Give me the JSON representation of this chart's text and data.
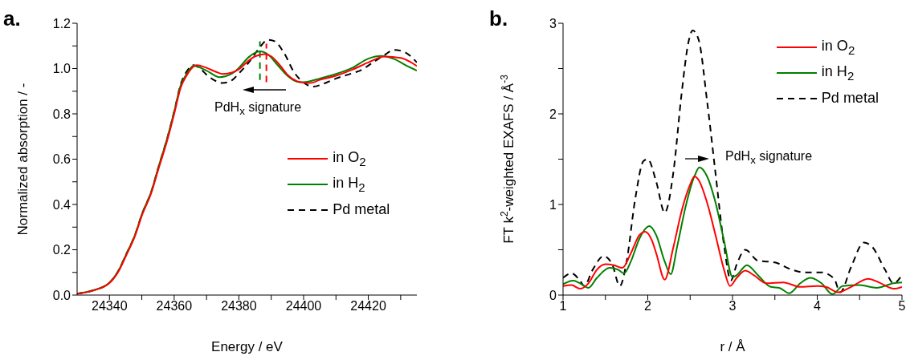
{
  "chart_data": [
    {
      "type": "line",
      "xlabel": "Energy / eV",
      "ylabel": "Normalized absorption / -",
      "xlim": [
        24330,
        24435
      ],
      "xticks": [
        24340,
        {
          "value": 24350,
          "label": null
        },
        24360,
        {
          "value": 24370,
          "label": null
        },
        24380,
        {
          "value": 24390,
          "label": null
        },
        24400,
        {
          "value": 24410,
          "label": null
        },
        24420,
        {
          "value": 24430,
          "label": null
        }
      ],
      "ylim": [
        0,
        1.2
      ],
      "yticks": [
        {
          "value": 0,
          "label": "0.0"
        },
        {
          "value": 0.1,
          "label": null
        },
        {
          "value": 0.2,
          "label": "0.2"
        },
        {
          "value": 0.3,
          "label": null
        },
        {
          "value": 0.4,
          "label": "0.4"
        },
        {
          "value": 0.5,
          "label": null
        },
        {
          "value": 0.6,
          "label": "0.6"
        },
        {
          "value": 0.7,
          "label": null
        },
        {
          "value": 0.8,
          "label": "0.8"
        },
        {
          "value": 0.9,
          "label": null
        },
        {
          "value": 1,
          "label": "1.0"
        },
        {
          "value": 1.1,
          "label": null
        },
        {
          "value": 1.2,
          "label": "1.2"
        }
      ],
      "grid": false,
      "legend": "right",
      "marker": "none",
      "annotations": [
        "a.",
        "PdH$_{x}$ signature"
      ],
      "series": [
        {
          "name": "in O$_{2}$",
          "color": "#ff0000",
          "line_style": "solid",
          "x": [
            24330,
            24335,
            24340,
            24343,
            24345,
            24348,
            24350,
            24353,
            24355,
            24358,
            24360,
            24362,
            24364,
            24366,
            24367,
            24370,
            24373,
            24375,
            24378,
            24380,
            24383,
            24385,
            24388,
            24390,
            24393,
            24395,
            24398,
            24400,
            24402,
            24405,
            24410,
            24415,
            24420,
            24425,
            24430,
            24435
          ],
          "values": [
            0.006,
            0.02,
            0.053,
            0.11,
            0.17,
            0.265,
            0.35,
            0.454,
            0.55,
            0.69,
            0.8,
            0.915,
            0.973,
            1.009,
            1.015,
            1.003,
            0.985,
            0.976,
            0.983,
            0.997,
            1.035,
            1.054,
            1.064,
            1.054,
            1.009,
            0.973,
            0.944,
            0.938,
            0.936,
            0.95,
            0.968,
            0.995,
            1.027,
            1.053,
            1.047,
            1.011
          ]
        },
        {
          "name": "in H$_{2}$",
          "color": "#008000",
          "line_style": "solid",
          "x": [
            24330,
            24335,
            24340,
            24343,
            24345,
            24348,
            24350,
            24353,
            24355,
            24358,
            24360,
            24362,
            24364,
            24366,
            24370,
            24374,
            24378,
            24380,
            24383,
            24386.5,
            24389,
            24392,
            24395,
            24398,
            24400,
            24405,
            24410,
            24415,
            24420,
            24424,
            24428,
            24432,
            24435
          ],
          "values": [
            0.006,
            0.021,
            0.055,
            0.113,
            0.175,
            0.27,
            0.356,
            0.46,
            0.558,
            0.7,
            0.81,
            0.925,
            0.98,
            1.012,
            0.991,
            0.962,
            0.979,
            1.003,
            1.05,
            1.076,
            1.062,
            1.015,
            0.968,
            0.942,
            0.94,
            0.956,
            0.976,
            1.003,
            1.044,
            1.056,
            1.042,
            1.011,
            0.991
          ]
        },
        {
          "name": "Pd metal",
          "color": "#000000",
          "line_style": "dashed",
          "x": [
            24330,
            24335,
            24340,
            24343,
            24345,
            24348,
            24350,
            24353,
            24355,
            24358,
            24360,
            24362,
            24364,
            24366,
            24368,
            24370,
            24372,
            24375,
            24378,
            24380,
            24383,
            24386,
            24389,
            24391,
            24394,
            24397,
            24400,
            24403,
            24406,
            24410,
            24415,
            24418,
            24421,
            24425,
            24428,
            24431,
            24435
          ],
          "values": [
            0.006,
            0.021,
            0.055,
            0.113,
            0.175,
            0.27,
            0.356,
            0.46,
            0.558,
            0.7,
            0.81,
            0.93,
            0.99,
            1.015,
            1.0,
            0.973,
            0.952,
            0.936,
            0.95,
            0.979,
            1.026,
            1.085,
            1.127,
            1.121,
            1.068,
            0.985,
            0.938,
            0.92,
            0.932,
            0.956,
            0.979,
            0.995,
            1.023,
            1.06,
            1.082,
            1.074,
            1.027
          ]
        },
        {
          "color": "#008000",
          "line_style": "dashed",
          "x": [
            24386.5,
            24386.5
          ],
          "values": [
            0.95,
            1.12
          ]
        },
        {
          "color": "#ff0000",
          "line_style": "dashed",
          "x": [
            24388.5,
            24388.5
          ],
          "values": [
            0.94,
            1.11
          ]
        }
      ]
    },
    {
      "type": "line",
      "xlabel": "r / Å",
      "ylabel": "FT k$^{2}$-weighted EXAFS / Å$^{-3}$",
      "xlim": [
        1,
        5
      ],
      "xticks": [
        1,
        {
          "value": 1.5,
          "label": null
        },
        2,
        {
          "value": 2.5,
          "label": null
        },
        3,
        {
          "value": 3.5,
          "label": null
        },
        4,
        {
          "value": 4.5,
          "label": null
        },
        5
      ],
      "ylim": [
        0,
        3
      ],
      "yticks": [
        0,
        {
          "value": 0.5,
          "label": null
        },
        1,
        {
          "value": 1.5,
          "label": null
        },
        2,
        {
          "value": 2.5,
          "label": null
        },
        3
      ],
      "grid": false,
      "legend": "top right",
      "marker": "none",
      "annotations": [
        "b.",
        "PdH$_{x}$ signature"
      ],
      "series": [
        {
          "name": "in O$_{2}$",
          "color": "#ff0000",
          "line_style": "solid",
          "x": [
            1,
            1.1,
            1.2,
            1.3,
            1.4,
            1.5,
            1.6,
            1.7,
            1.8,
            1.9,
            1.97,
            2.05,
            2.1,
            2.2,
            2.3,
            2.4,
            2.5,
            2.55,
            2.6,
            2.7,
            2.8,
            2.9,
            2.97,
            3.05,
            3.15,
            3.25,
            3.4,
            3.6,
            3.8,
            4,
            4.1,
            4.25,
            4.4,
            4.6,
            4.75,
            4.9,
            5
          ],
          "values": [
            0.1,
            0.11,
            0.07,
            0.13,
            0.28,
            0.34,
            0.33,
            0.3,
            0.46,
            0.66,
            0.7,
            0.6,
            0.46,
            0.17,
            0.52,
            0.93,
            1.22,
            1.31,
            1.27,
            1.02,
            0.66,
            0.28,
            0.1,
            0.19,
            0.27,
            0.22,
            0.13,
            0.14,
            0.09,
            0.1,
            0.09,
            0.03,
            0.09,
            0.18,
            0.13,
            0.07,
            0.09
          ]
        },
        {
          "name": "in H$_{2}$",
          "color": "#008000",
          "line_style": "solid",
          "x": [
            1,
            1.12,
            1.2,
            1.3,
            1.4,
            1.55,
            1.65,
            1.72,
            1.8,
            1.9,
            2.02,
            2.1,
            2.2,
            2.27,
            2.35,
            2.45,
            2.55,
            2.61,
            2.7,
            2.8,
            2.9,
            3,
            3.05,
            3.17,
            3.3,
            3.45,
            3.55,
            3.67,
            3.8,
            3.92,
            4.05,
            4.18,
            4.3,
            4.5,
            4.7,
            4.9,
            5
          ],
          "values": [
            0.12,
            0.16,
            0.13,
            0.08,
            0.19,
            0.3,
            0.28,
            0.24,
            0.37,
            0.62,
            0.76,
            0.66,
            0.37,
            0.23,
            0.55,
            0.99,
            1.31,
            1.41,
            1.31,
            1.02,
            0.6,
            0.2,
            0.22,
            0.33,
            0.22,
            0.09,
            0.08,
            0.02,
            0.13,
            0.19,
            0.13,
            0.01,
            0.1,
            0.11,
            0.08,
            0.13,
            0.14
          ]
        },
        {
          "name": "Pd metal",
          "color": "#000000",
          "line_style": "dashed",
          "x": [
            1,
            1.1,
            1.2,
            1.25,
            1.35,
            1.48,
            1.58,
            1.67,
            1.75,
            1.85,
            1.95,
            2,
            2.1,
            2.2,
            2.3,
            2.4,
            2.48,
            2.53,
            2.6,
            2.7,
            2.8,
            2.9,
            2.98,
            3.05,
            3.15,
            3.3,
            3.5,
            3.7,
            3.85,
            4.05,
            4.2,
            4.27,
            4.4,
            4.55,
            4.65,
            4.8,
            4.9,
            5
          ],
          "values": [
            0.19,
            0.24,
            0.16,
            0.1,
            0.28,
            0.43,
            0.34,
            0.1,
            0.37,
            1.05,
            1.48,
            1.5,
            1.25,
            0.91,
            1.34,
            2.23,
            2.79,
            2.92,
            2.82,
            2.14,
            1.34,
            0.55,
            0.16,
            0.34,
            0.5,
            0.38,
            0.36,
            0.28,
            0.25,
            0.25,
            0.18,
            0.03,
            0.31,
            0.58,
            0.53,
            0.28,
            0.13,
            0.22
          ]
        }
      ]
    }
  ]
}
